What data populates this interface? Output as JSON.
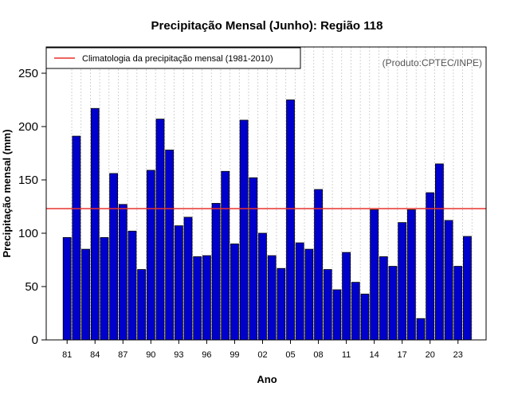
{
  "chart_data": {
    "type": "bar",
    "title": "Precipitação Mensal (Junho): Região 118",
    "xlabel": "Ano",
    "ylabel": "Precipitação mensal (mm)",
    "ylim": [
      0,
      275
    ],
    "yticks": [
      0,
      50,
      100,
      150,
      200,
      250
    ],
    "grid": "vertical dotted",
    "legend_position": "top-left",
    "credit": "(Produto:CPTEC/INPE)",
    "x": [
      1981,
      1982,
      1983,
      1984,
      1985,
      1986,
      1987,
      1988,
      1989,
      1990,
      1991,
      1992,
      1993,
      1994,
      1995,
      1996,
      1997,
      1998,
      1999,
      2000,
      2001,
      2002,
      2003,
      2004,
      2005,
      2006,
      2007,
      2008,
      2009,
      2010,
      2011,
      2012,
      2013,
      2014,
      2015,
      2016,
      2017,
      2018,
      2019,
      2020,
      2021,
      2022,
      2023,
      2024
    ],
    "xtick_labels": [
      "81",
      "84",
      "87",
      "90",
      "93",
      "96",
      "99",
      "02",
      "05",
      "08",
      "11",
      "14",
      "17",
      "20",
      "23"
    ],
    "xtick_index": [
      0,
      3,
      6,
      9,
      12,
      15,
      18,
      21,
      24,
      27,
      30,
      33,
      36,
      39,
      42
    ],
    "series": [
      {
        "name": "Precipitação mensal",
        "color": "#0000cd",
        "values": [
          96,
          191,
          85,
          217,
          96,
          156,
          127,
          102,
          66,
          159,
          207,
          178,
          107,
          115,
          78,
          79,
          128,
          158,
          90,
          206,
          152,
          100,
          79,
          67,
          225,
          91,
          85,
          141,
          66,
          47,
          82,
          54,
          43,
          122,
          78,
          69,
          110,
          122,
          20,
          138,
          165,
          112,
          69,
          97
        ]
      }
    ],
    "climatology": {
      "label": "Climatologia da precipitação mensal (1981-2010)",
      "value": 123,
      "color": "#e8312c"
    }
  }
}
